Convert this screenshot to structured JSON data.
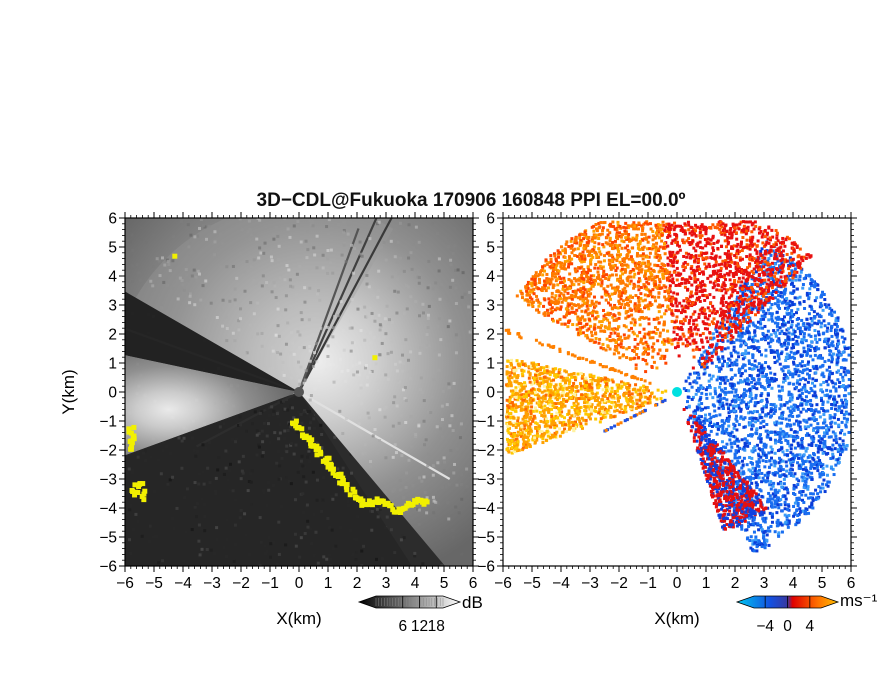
{
  "title": "3D−CDL@Fukuoka 170906 160848 PPI EL=00.0º",
  "chart_data": [
    {
      "type": "heatmap",
      "panel": "left",
      "quantity": "SNR",
      "xlabel": "X(km)",
      "ylabel": "Y(km)",
      "xlim": [
        -6,
        6
      ],
      "ylim": [
        -6,
        6
      ],
      "xticks": [
        "−6",
        "−5",
        "−4",
        "−3",
        "−2",
        "−1",
        "0",
        "1",
        "2",
        "3",
        "4",
        "5",
        "6"
      ],
      "yticks": [
        "6",
        "5",
        "4",
        "3",
        "2",
        "1",
        "0",
        "−1",
        "−2",
        "−3",
        "−4",
        "−5",
        "−6"
      ],
      "colorbar": {
        "label": "dB",
        "ticks": [
          "6",
          "12",
          "18"
        ],
        "range": [
          0,
          24
        ],
        "colors": [
          "#000000",
          "#ffffff"
        ]
      },
      "overlay_color": "#f2f000",
      "description_sectors_deg": {
        "bright_sector": [
          20,
          200
        ],
        "dark_sectors": [
          [
            150,
            168
          ],
          [
            200,
            245
          ]
        ]
      }
    },
    {
      "type": "heatmap",
      "panel": "right",
      "quantity": "Doppler velocity",
      "xlabel": "X(km)",
      "ylabel": "",
      "xlim": [
        -6,
        6
      ],
      "ylim": [
        -6,
        6
      ],
      "xticks": [
        "−6",
        "−5",
        "−4",
        "−3",
        "−2",
        "−1",
        "0",
        "1",
        "2",
        "3",
        "4",
        "5",
        "6"
      ],
      "yticks": [
        "6",
        "5",
        "4",
        "3",
        "2",
        "1",
        "0",
        "−1",
        "−2",
        "−3",
        "−4",
        "−5",
        "−6"
      ],
      "colorbar": {
        "label": "ms⁻¹",
        "ticks": [
          "−4",
          "0",
          "4"
        ],
        "range": [
          -6,
          6
        ],
        "colors": [
          "#00c8f0",
          "#1450e0",
          "#e00000",
          "#ff9a00"
        ]
      },
      "radar_color": "#00e0e0"
    }
  ]
}
